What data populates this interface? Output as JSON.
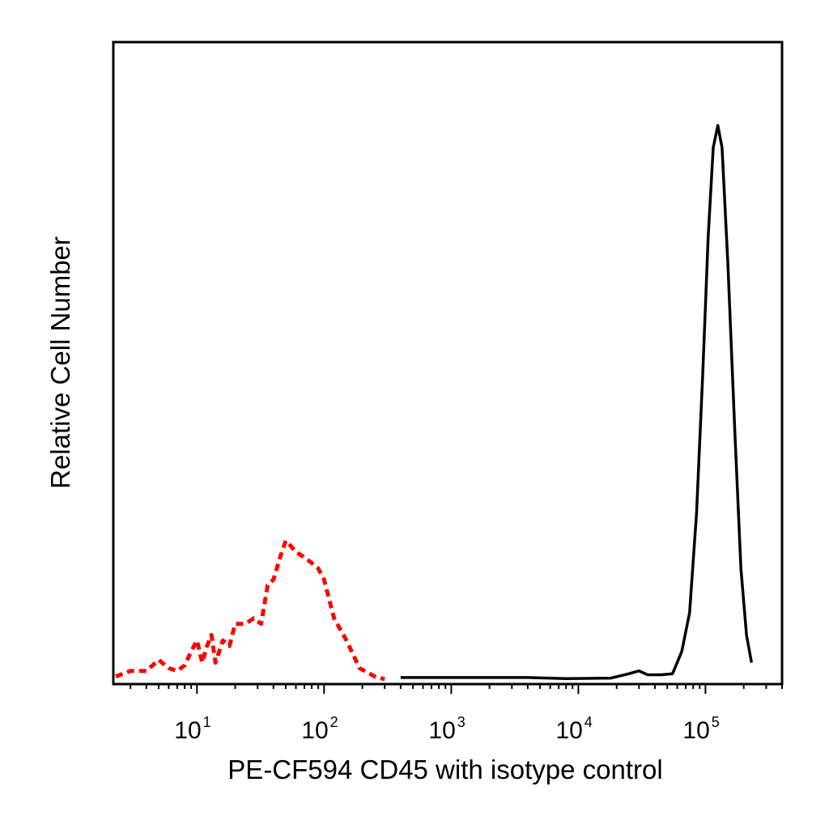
{
  "chart_data": {
    "type": "line",
    "xlabel": "PE-CF594 CD45 with isotype control",
    "ylabel": "Relative Cell Number",
    "xscale": "log",
    "xlim": [
      2.2,
      400000
    ],
    "ylim": [
      0,
      100
    ],
    "grid": false,
    "x_ticks": [
      {
        "base": "10",
        "exp": "1",
        "value": 10
      },
      {
        "base": "10",
        "exp": "2",
        "value": 100
      },
      {
        "base": "10",
        "exp": "3",
        "value": 1000
      },
      {
        "base": "10",
        "exp": "4",
        "value": 10000
      },
      {
        "base": "10",
        "exp": "5",
        "value": 100000
      }
    ],
    "series": [
      {
        "line_style": "dashed",
        "color": "#ff0000",
        "points": [
          [
            2.3,
            0.5
          ],
          [
            3,
            1.5
          ],
          [
            4,
            1.5
          ],
          [
            5,
            3.5
          ],
          [
            6,
            2
          ],
          [
            7,
            1.5
          ],
          [
            8,
            2.5
          ],
          [
            9,
            5
          ],
          [
            10,
            7
          ],
          [
            11,
            3
          ],
          [
            12,
            6
          ],
          [
            13,
            8
          ],
          [
            14,
            3
          ],
          [
            16,
            7
          ],
          [
            18,
            6
          ],
          [
            20,
            10
          ],
          [
            24,
            10
          ],
          [
            28,
            11
          ],
          [
            32,
            10
          ],
          [
            36,
            17
          ],
          [
            40,
            18
          ],
          [
            45,
            22
          ],
          [
            50,
            25
          ],
          [
            55,
            24
          ],
          [
            60,
            23
          ],
          [
            70,
            22
          ],
          [
            80,
            21
          ],
          [
            90,
            20
          ],
          [
            100,
            18
          ],
          [
            120,
            11
          ],
          [
            150,
            7
          ],
          [
            190,
            2
          ],
          [
            250,
            0.5
          ],
          [
            300,
            0
          ]
        ]
      },
      {
        "line_style": "solid",
        "color": "#000000",
        "points": [
          [
            400,
            0.3
          ],
          [
            1000,
            0.3
          ],
          [
            4000,
            0.3
          ],
          [
            8000,
            0.1
          ],
          [
            18000,
            0.2
          ],
          [
            25000,
            1
          ],
          [
            30000,
            1.5
          ],
          [
            35000,
            0.8
          ],
          [
            45000,
            0.8
          ],
          [
            55000,
            1
          ],
          [
            65000,
            5
          ],
          [
            75000,
            12
          ],
          [
            85000,
            30
          ],
          [
            95000,
            55
          ],
          [
            105000,
            80
          ],
          [
            115000,
            96
          ],
          [
            125000,
            100
          ],
          [
            135000,
            96
          ],
          [
            150000,
            75
          ],
          [
            170000,
            45
          ],
          [
            190000,
            20
          ],
          [
            210000,
            8
          ],
          [
            230000,
            3
          ]
        ]
      }
    ]
  }
}
